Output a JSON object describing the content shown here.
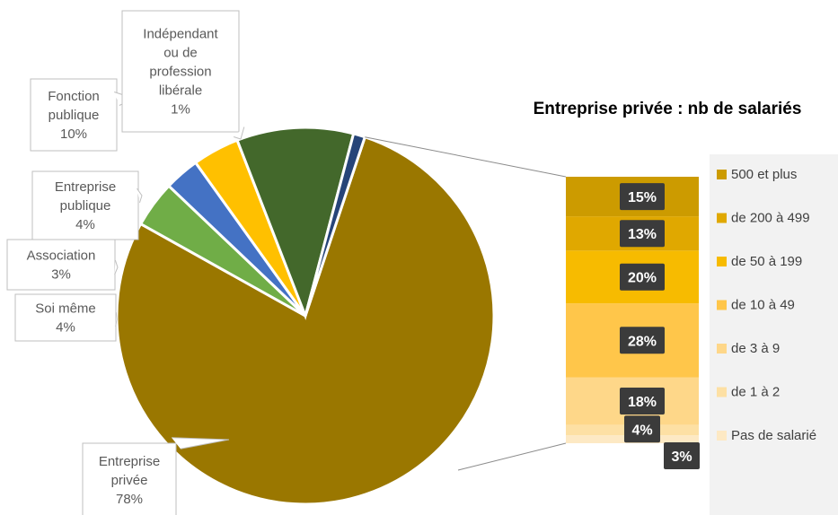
{
  "chart_data": [
    {
      "type": "pie",
      "title": "",
      "categories": [
        "Entreprise privée",
        "Soi même",
        "Association",
        "Entreprise publique",
        "Fonction publique",
        "Indépendant ou de profession libérale"
      ],
      "values": [
        78,
        4,
        3,
        4,
        10,
        1
      ],
      "value_labels": [
        "78%",
        "4%",
        "3%",
        "4%",
        "10%",
        "1%"
      ],
      "label_lines": [
        [
          "Entreprise",
          "privée",
          "78%"
        ],
        [
          "Soi même",
          "4%"
        ],
        [
          "Association",
          "3%"
        ],
        [
          "Entreprise",
          "publique",
          "4%"
        ],
        [
          "Fonction",
          "publique",
          "10%"
        ],
        [
          "Indépendant",
          "ou de",
          "profession",
          "libérale",
          "1%"
        ]
      ],
      "colors": [
        "#9a7700",
        "#70ad47",
        "#4472c4",
        "#ffc000",
        "#43682b",
        "#264478"
      ]
    },
    {
      "type": "bar",
      "stacked": true,
      "title": "Entreprise privée : nb de salariés",
      "categories": [
        "Entreprise privée"
      ],
      "series": [
        {
          "name": "Pas de salarié",
          "values": [
            3
          ],
          "label": "3%",
          "color": "#fde9c4"
        },
        {
          "name": "de 1 à 2",
          "values": [
            4
          ],
          "label": "4%",
          "color": "#fde0a4"
        },
        {
          "name": "de 3 à 9",
          "values": [
            18
          ],
          "label": "18%",
          "color": "#fed789"
        },
        {
          "name": "de 10 à 49",
          "values": [
            28
          ],
          "label": "28%",
          "color": "#ffc64a"
        },
        {
          "name": "de 50 à 199",
          "values": [
            20
          ],
          "label": "20%",
          "color": "#f7bb00"
        },
        {
          "name": "de 200 à 499",
          "values": [
            13
          ],
          "label": "13%",
          "color": "#e0a800"
        },
        {
          "name": "500 et plus",
          "values": [
            15
          ],
          "label": "15%",
          "color": "#cc9b00"
        }
      ],
      "legend_position": "right"
    }
  ]
}
